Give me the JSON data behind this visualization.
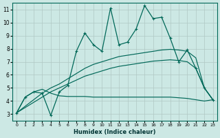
{
  "xlabel": "Humidex (Indice chaleur)",
  "background_color": "#cce8e4",
  "grid_color": "#b0c8c4",
  "line_color": "#006858",
  "xlim": [
    -0.5,
    23.5
  ],
  "ylim": [
    2.5,
    11.5
  ],
  "xticks": [
    0,
    1,
    2,
    3,
    4,
    5,
    6,
    7,
    8,
    9,
    10,
    11,
    12,
    13,
    14,
    15,
    16,
    17,
    18,
    19,
    20,
    21,
    22,
    23
  ],
  "yticks": [
    3,
    4,
    5,
    6,
    7,
    8,
    9,
    10,
    11
  ],
  "x": [
    0,
    1,
    2,
    3,
    4,
    5,
    6,
    7,
    8,
    9,
    10,
    11,
    12,
    13,
    14,
    15,
    16,
    17,
    18,
    19,
    20,
    21,
    22,
    23
  ],
  "y_jagged": [
    3.1,
    4.3,
    4.7,
    4.6,
    2.9,
    4.7,
    5.2,
    7.8,
    9.2,
    8.3,
    7.8,
    11.1,
    8.3,
    8.5,
    9.5,
    11.3,
    10.3,
    10.4,
    8.8,
    7.0,
    7.9,
    6.5,
    5.0,
    4.1
  ],
  "y_smooth_upper": [
    3.1,
    3.6,
    4.1,
    4.6,
    5.0,
    5.3,
    5.7,
    6.1,
    6.5,
    6.8,
    7.0,
    7.2,
    7.4,
    7.5,
    7.6,
    7.7,
    7.8,
    7.9,
    7.95,
    7.9,
    7.8,
    7.3,
    5.0,
    4.1
  ],
  "y_smooth_mid": [
    3.1,
    3.5,
    3.9,
    4.3,
    4.7,
    5.0,
    5.3,
    5.6,
    5.9,
    6.1,
    6.3,
    6.5,
    6.65,
    6.75,
    6.85,
    6.95,
    7.05,
    7.1,
    7.15,
    7.1,
    7.0,
    6.5,
    5.0,
    4.1
  ],
  "y_flat": [
    3.1,
    4.3,
    4.7,
    4.9,
    4.6,
    4.4,
    4.35,
    4.35,
    4.35,
    4.3,
    4.3,
    4.3,
    4.3,
    4.3,
    4.3,
    4.3,
    4.3,
    4.3,
    4.3,
    4.25,
    4.2,
    4.1,
    4.0,
    4.1
  ]
}
